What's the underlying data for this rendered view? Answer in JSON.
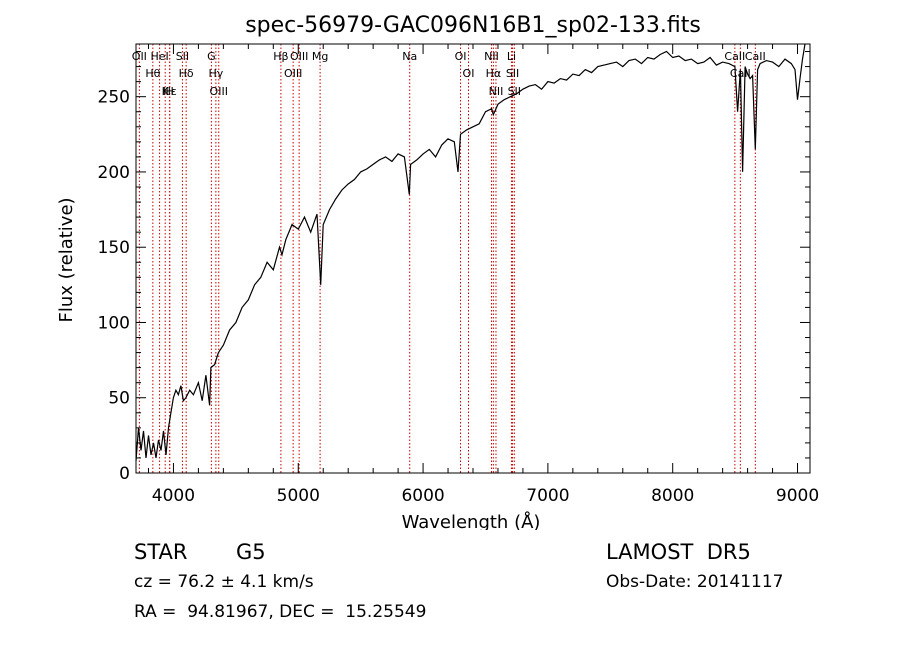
{
  "chart_data": {
    "type": "line",
    "title": "spec-56979-GAC096N16B1_sp02-133.fits",
    "xlabel": "Wavelength (Å)",
    "ylabel": "Flux (relative)",
    "xlim": [
      3700,
      9100
    ],
    "ylim": [
      0,
      285
    ],
    "xticks": [
      4000,
      5000,
      6000,
      7000,
      8000,
      9000
    ],
    "yticks": [
      0,
      50,
      100,
      150,
      200,
      250
    ],
    "grid": false,
    "line_color": "#000000",
    "marker_line_color": "#cc0000",
    "series": [
      {
        "x": [
          3700,
          3720,
          3740,
          3760,
          3780,
          3800,
          3820,
          3840,
          3860,
          3880,
          3900,
          3920,
          3940,
          3960,
          3980,
          4000,
          4020,
          4040,
          4060,
          4080,
          4100,
          4130,
          4160,
          4200,
          4230,
          4260,
          4290,
          4300,
          4330,
          4360,
          4400,
          4450,
          4500,
          4550,
          4600,
          4650,
          4700,
          4750,
          4800,
          4850,
          4870,
          4900,
          4950,
          5000,
          5050,
          5100,
          5150,
          5180,
          5200,
          5250,
          5300,
          5350,
          5400,
          5450,
          5500,
          5550,
          5600,
          5650,
          5700,
          5750,
          5800,
          5850,
          5890,
          5900,
          5950,
          6000,
          6050,
          6100,
          6150,
          6200,
          6250,
          6280,
          6300,
          6350,
          6400,
          6450,
          6500,
          6550,
          6563,
          6600,
          6650,
          6700,
          6750,
          6800,
          6850,
          6900,
          6950,
          7000,
          7050,
          7100,
          7150,
          7200,
          7250,
          7300,
          7350,
          7400,
          7450,
          7500,
          7550,
          7600,
          7650,
          7700,
          7750,
          7800,
          7850,
          7900,
          7950,
          8000,
          8050,
          8100,
          8150,
          8200,
          8250,
          8300,
          8350,
          8400,
          8450,
          8498,
          8520,
          8542,
          8560,
          8580,
          8600,
          8620,
          8640,
          8662,
          8680,
          8700,
          8750,
          8800,
          8850,
          8900,
          8950,
          8980,
          9000,
          9020,
          9040,
          9060
        ],
        "y": [
          8,
          30,
          15,
          28,
          10,
          25,
          12,
          20,
          10,
          22,
          15,
          28,
          12,
          30,
          40,
          50,
          55,
          52,
          58,
          48,
          50,
          55,
          52,
          60,
          48,
          65,
          45,
          70,
          72,
          80,
          85,
          95,
          100,
          110,
          115,
          125,
          130,
          140,
          135,
          150,
          145,
          155,
          165,
          162,
          170,
          160,
          172,
          125,
          165,
          175,
          182,
          188,
          192,
          195,
          200,
          202,
          205,
          208,
          210,
          207,
          212,
          210,
          185,
          205,
          208,
          212,
          215,
          210,
          218,
          222,
          220,
          200,
          225,
          228,
          230,
          232,
          240,
          242,
          238,
          245,
          248,
          250,
          252,
          255,
          257,
          258,
          255,
          260,
          259,
          262,
          261,
          265,
          264,
          268,
          266,
          270,
          271,
          272,
          273,
          270,
          274,
          275,
          272,
          276,
          275,
          278,
          280,
          276,
          277,
          274,
          275,
          272,
          273,
          276,
          271,
          273,
          272,
          270,
          240,
          268,
          200,
          270,
          265,
          262,
          264,
          215,
          268,
          272,
          274,
          273,
          270,
          275,
          272,
          268,
          248,
          262,
          275,
          285
        ]
      }
    ],
    "line_markers": [
      {
        "wavelength": 3727,
        "label": "OII"
      },
      {
        "wavelength": 3835,
        "label": "Hθ"
      },
      {
        "wavelength": 3889,
        "label": "HeI"
      },
      {
        "wavelength": 3934,
        "label": "K"
      },
      {
        "wavelength": 3970,
        "label": "Hε"
      },
      {
        "wavelength": 3970,
        "label": "H"
      },
      {
        "wavelength": 4072,
        "label": "SII"
      },
      {
        "wavelength": 4102,
        "label": "Hδ"
      },
      {
        "wavelength": 4304,
        "label": "G"
      },
      {
        "wavelength": 4340,
        "label": "Hγ"
      },
      {
        "wavelength": 4363,
        "label": "OIII"
      },
      {
        "wavelength": 4861,
        "label": "Hβ"
      },
      {
        "wavelength": 4959,
        "label": "OIII"
      },
      {
        "wavelength": 5007,
        "label": "OIII"
      },
      {
        "wavelength": 5175,
        "label": "Mg"
      },
      {
        "wavelength": 5893,
        "label": "Na"
      },
      {
        "wavelength": 6300,
        "label": "OI"
      },
      {
        "wavelength": 6364,
        "label": "OI"
      },
      {
        "wavelength": 6548,
        "label": "NII"
      },
      {
        "wavelength": 6563,
        "label": "Hα"
      },
      {
        "wavelength": 6584,
        "label": "NII"
      },
      {
        "wavelength": 6708,
        "label": "Li"
      },
      {
        "wavelength": 6717,
        "label": "SII"
      },
      {
        "wavelength": 6731,
        "label": "SII"
      },
      {
        "wavelength": 8498,
        "label": "CaII"
      },
      {
        "wavelength": 8542,
        "label": "CaII"
      },
      {
        "wavelength": 8662,
        "label": "CaII"
      }
    ]
  },
  "info": {
    "object_class": "STAR",
    "subclass": "G5",
    "survey": "LAMOST  DR5",
    "redshift_line": "cz = 76.2 ± 4.1 km/s",
    "obs_date": "Obs-Date: 20141117",
    "coords": "RA =  94.81967, DEC =  15.25549"
  }
}
